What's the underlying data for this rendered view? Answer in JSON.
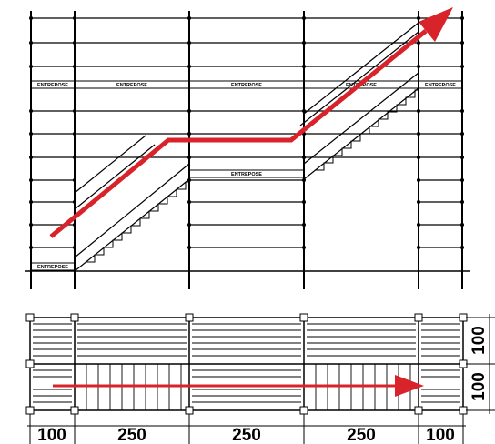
{
  "elevation": {
    "board_label": "ENTREPOSE"
  },
  "plan": {
    "bay_widths": [
      "100",
      "250",
      "250",
      "250",
      "100"
    ],
    "depth_widths": [
      "100",
      "100"
    ]
  },
  "colors": {
    "line": "#000000",
    "arrow": "#d8232a",
    "background": "#ffffff"
  }
}
